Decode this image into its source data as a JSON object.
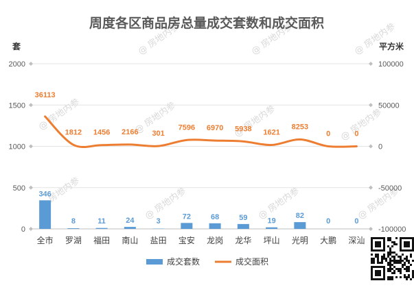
{
  "chart_data": {
    "type": "bar+line",
    "title": "周度各区商品房总量成交套数和成交面积",
    "left_unit": "套",
    "right_unit": "平方米",
    "categories": [
      "全市",
      "罗湖",
      "福田",
      "南山",
      "盐田",
      "宝安",
      "龙岗",
      "龙华",
      "坪山",
      "光明",
      "大鹏",
      "深汕"
    ],
    "series": [
      {
        "name": "成交套数",
        "type": "bar",
        "axis": "left",
        "color": "#5b9bd5",
        "values": [
          346,
          8,
          11,
          24,
          3,
          72,
          68,
          59,
          19,
          82,
          0,
          0
        ]
      },
      {
        "name": "成交面积",
        "type": "line",
        "axis": "right",
        "color": "#ed7d31",
        "smooth": true,
        "values": [
          36113,
          1812,
          1456,
          2166,
          301,
          7596,
          6970,
          5938,
          1621,
          8253,
          0,
          0
        ]
      }
    ],
    "left_axis": {
      "min": 0,
      "max": 2000,
      "ticks": [
        "0",
        "500",
        "1000",
        "1500",
        "2000"
      ]
    },
    "right_axis": {
      "min": -100000,
      "max": 100000,
      "ticks": [
        "-100000",
        "-50000",
        "0",
        "50000",
        "100000"
      ]
    },
    "grid": true,
    "legend_position": "bottom"
  },
  "watermark": "@ 房地内参"
}
